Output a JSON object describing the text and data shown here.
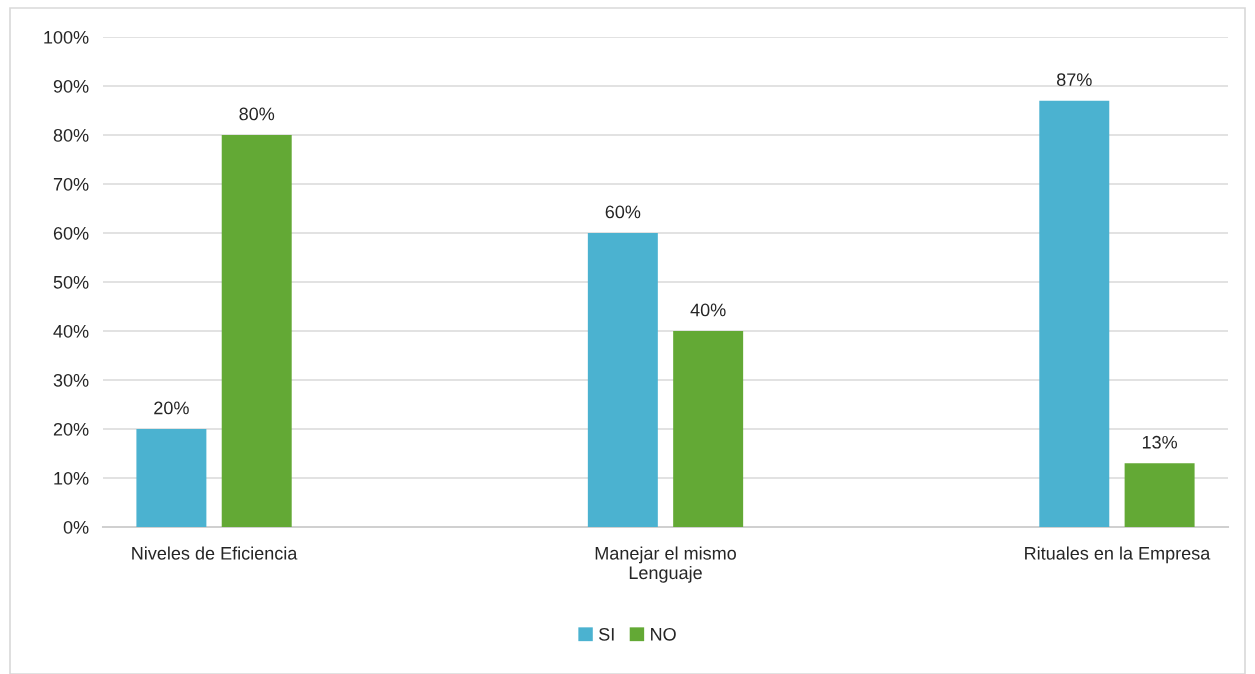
{
  "chart_data": {
    "type": "bar",
    "categories": [
      "Niveles de Eficiencia",
      "Manejar el mismo\nLenguaje",
      "Rituales en la Empresa"
    ],
    "series": [
      {
        "name": "SI",
        "color": "#4bb2d0",
        "values": [
          20,
          60,
          87
        ],
        "value_labels": [
          "20%",
          "60%",
          "87%"
        ]
      },
      {
        "name": "NO",
        "color": "#63a935",
        "values": [
          80,
          40,
          13
        ],
        "value_labels": [
          "80%",
          "40%",
          "13%"
        ]
      }
    ],
    "ylim": [
      0,
      100
    ],
    "yticks": [
      {
        "value": 0,
        "label": "0%"
      },
      {
        "value": 10,
        "label": "10%"
      },
      {
        "value": 20,
        "label": "20%"
      },
      {
        "value": 30,
        "label": "30%"
      },
      {
        "value": 40,
        "label": "40%"
      },
      {
        "value": 50,
        "label": "50%"
      },
      {
        "value": 60,
        "label": "60%"
      },
      {
        "value": 70,
        "label": "70%"
      },
      {
        "value": 80,
        "label": "80%"
      },
      {
        "value": 90,
        "label": "90%"
      },
      {
        "value": 100,
        "label": "100%"
      }
    ],
    "grid": "y",
    "legend": "bottom"
  }
}
